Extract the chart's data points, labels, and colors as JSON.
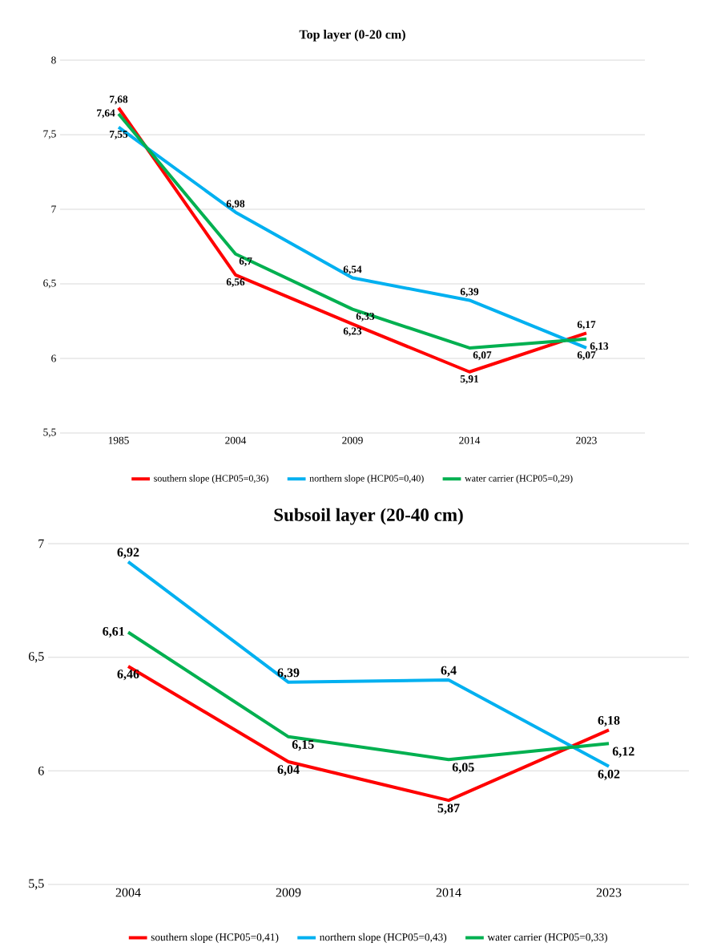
{
  "chart_data": [
    {
      "type": "line",
      "title": "Top layer (0-20 cm)",
      "categories": [
        "1985",
        "2004",
        "2009",
        "2014",
        "2023"
      ],
      "series": [
        {
          "name": "southern slope (HCP05=0,36)",
          "color": "#ff0000",
          "values": [
            7.68,
            6.56,
            6.23,
            5.91,
            6.17
          ],
          "value_labels": [
            "7,68",
            "6,56",
            "6,23",
            "5,91",
            "6,17"
          ]
        },
        {
          "name": "northern slope (HCP05=0,40)",
          "color": "#00b0f0",
          "values": [
            7.55,
            6.98,
            6.54,
            6.39,
            6.07
          ],
          "value_labels": [
            "7,55",
            "6,98",
            "6,54",
            "6,39",
            "6,07"
          ]
        },
        {
          "name": "water carrier (HCP05=0,29)",
          "color": "#00b050",
          "values": [
            7.64,
            6.7,
            6.33,
            6.07,
            6.13
          ],
          "value_labels": [
            "7,64",
            "6,7",
            "6,33",
            "6,07",
            "6,13"
          ]
        }
      ],
      "ylim": [
        5.5,
        8
      ],
      "yticks": [
        {
          "value": 5.5,
          "label": "5,5"
        },
        6,
        {
          "value": 6.5,
          "label": "6,5"
        },
        7,
        {
          "value": 7.5,
          "label": "7,5"
        },
        8
      ],
      "grid": "y",
      "legend": "bottom"
    },
    {
      "type": "line",
      "title": "Subsoil layer (20-40 cm)",
      "categories": [
        "2004",
        "2009",
        "2014",
        "2023"
      ],
      "series": [
        {
          "name": "southern slope (HCP05=0,41)",
          "color": "#ff0000",
          "values": [
            6.46,
            6.04,
            5.87,
            6.18
          ],
          "value_labels": [
            "6,46",
            "6,04",
            "5,87",
            "6,18"
          ]
        },
        {
          "name": "northern slope (HCP05=0,43)",
          "color": "#00b0f0",
          "values": [
            6.92,
            6.39,
            6.4,
            6.02
          ],
          "value_labels": [
            "6,92",
            "6,39",
            "6,4",
            "6,02"
          ]
        },
        {
          "name": "water carrier (HCP05=0,33)",
          "color": "#00b050",
          "values": [
            6.61,
            6.15,
            6.05,
            6.12
          ],
          "value_labels": [
            "6,61",
            "6,15",
            "6,05",
            "6,12"
          ]
        }
      ],
      "ylim": [
        5.5,
        7
      ],
      "yticks": [
        {
          "value": 5.5,
          "label": "5,5"
        },
        6,
        {
          "value": 6.5,
          "label": "6,5"
        },
        7
      ],
      "grid": "y",
      "legend": "bottom"
    }
  ]
}
